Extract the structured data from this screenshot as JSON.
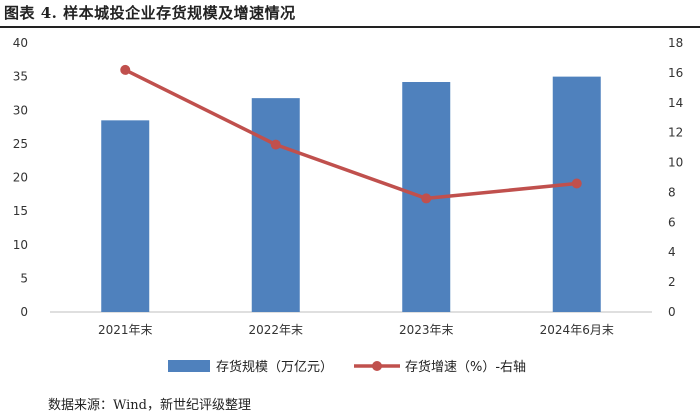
{
  "header": {
    "title": "图表 4.   样本城投企业存货规模及增速情况"
  },
  "footer": {
    "source": "数据来源：Wind，新世纪评级整理"
  },
  "chart_data": {
    "type": "bar",
    "categories": [
      "2021年末",
      "2022年末",
      "2023年末",
      "2024年6月末"
    ],
    "series": [
      {
        "name": "存货规模（万亿元）",
        "type": "bar",
        "axis": "left",
        "color": "#4f81bd",
        "values": [
          28.5,
          31.8,
          34.2,
          35.0
        ]
      },
      {
        "name": "存货增速（%）-右轴",
        "type": "line",
        "axis": "right",
        "color": "#c0504d",
        "values": [
          16.2,
          11.2,
          7.6,
          8.6
        ]
      }
    ],
    "y_left": {
      "min": 0,
      "max": 40,
      "step": 5
    },
    "y_right": {
      "min": 0,
      "max": 18,
      "step": 2
    },
    "grid": false,
    "legend": "bottom"
  }
}
